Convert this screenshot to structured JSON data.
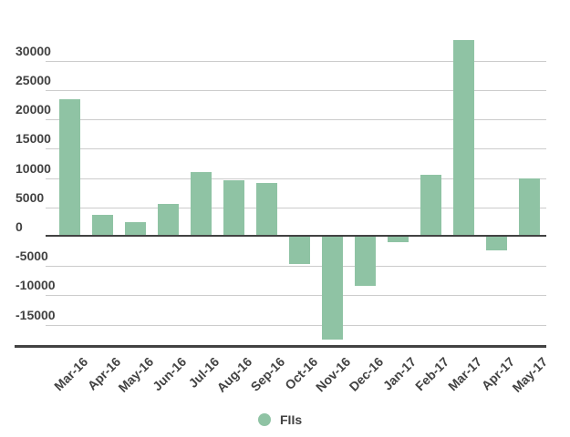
{
  "colors": {
    "bar": "#8fc3a4",
    "gridline": "#cccccc",
    "axis": "#424242",
    "text": "#424242",
    "background": "#ffffff"
  },
  "legend": {
    "label": "FIIs"
  },
  "chart_data": {
    "type": "bar",
    "title": "",
    "xlabel": "",
    "ylabel": "",
    "series_name": "FIIs",
    "categories": [
      "Mar-16",
      "Apr-16",
      "May-16",
      "Jun-16",
      "Jul-16",
      "Aug-16",
      "Sep-16",
      "Oct-16",
      "Nov-16",
      "Dec-16",
      "Jan-17",
      "Feb-17",
      "Mar-17",
      "Apr-17",
      "May-17"
    ],
    "values": [
      23500,
      3700,
      2500,
      5600,
      11000,
      9700,
      9200,
      -4600,
      -17600,
      -8400,
      -1000,
      10600,
      33600,
      -2400,
      9900
    ],
    "yticks": [
      30000,
      25000,
      20000,
      15000,
      10000,
      5000,
      0,
      -5000,
      -10000,
      -15000
    ],
    "ylim": [
      -18600,
      34200
    ],
    "grid": true,
    "legend_position": "bottom"
  }
}
